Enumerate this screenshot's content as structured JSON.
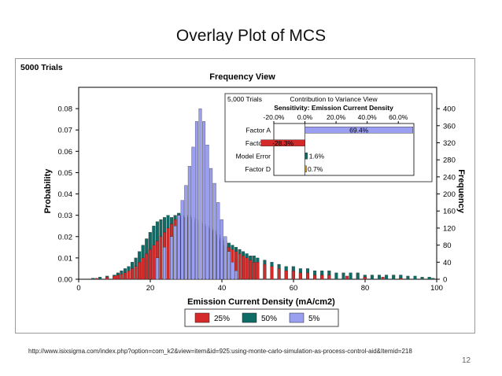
{
  "slide": {
    "title": "Overlay Plot of MCS",
    "source": "http://www.isixsigma.com/index.php?option=com_k2&view=item&id=925:using-monte-carlo-simulation-as-process-control-aid&Itemid=218",
    "page_number": "12"
  },
  "chart_data": [
    {
      "type": "bar",
      "subtype": "overlaid-histogram",
      "corner_label": "5000 Trials",
      "title": "Frequency View",
      "xlabel": "Emission Current Density (mA/cm2)",
      "ylabel": "Probability",
      "y2label": "Frequency",
      "xlim": [
        0,
        100
      ],
      "ylim": [
        0,
        0.09
      ],
      "y2lim": [
        0,
        450
      ],
      "x_ticks": [
        "0",
        "20",
        "40",
        "60",
        "80",
        "100"
      ],
      "y_ticks": [
        "0.00",
        "0.01",
        "0.02",
        "0.03",
        "0.04",
        "0.05",
        "0.06",
        "0.07",
        "0.08"
      ],
      "y2_ticks": [
        "0",
        "40",
        "80",
        "120",
        "160",
        "200",
        "240",
        "280",
        "320",
        "360",
        "400"
      ],
      "grid": false,
      "legend_position": "bottom",
      "bin_width": 0.9,
      "series": [
        {
          "name": "25%",
          "color": "#d42a2a",
          "x": [
            5,
            8,
            10,
            11,
            12,
            13,
            14,
            15,
            16,
            17,
            18,
            19,
            20,
            21,
            22,
            23,
            24,
            25,
            26,
            27,
            28,
            29,
            30,
            31,
            32,
            33,
            34,
            35,
            36,
            37,
            38,
            39,
            40,
            41,
            42,
            43,
            44,
            45,
            46,
            47,
            48,
            49,
            50,
            52,
            54,
            56,
            58,
            60,
            62,
            64,
            66,
            68,
            70,
            75,
            80,
            85,
            90
          ],
          "y": [
            0.0005,
            0.001,
            0.0015,
            0.002,
            0.0025,
            0.003,
            0.004,
            0.005,
            0.006,
            0.008,
            0.01,
            0.012,
            0.014,
            0.016,
            0.018,
            0.02,
            0.022,
            0.024,
            0.026,
            0.028,
            0.029,
            0.03,
            0.029,
            0.03,
            0.028,
            0.027,
            0.026,
            0.025,
            0.024,
            0.023,
            0.022,
            0.02,
            0.018,
            0.016,
            0.015,
            0.014,
            0.013,
            0.012,
            0.011,
            0.01,
            0.009,
            0.008,
            0.008,
            0.007,
            0.006,
            0.005,
            0.004,
            0.004,
            0.003,
            0.003,
            0.002,
            0.002,
            0.002,
            0.0015,
            0.001,
            0.001,
            0.0005
          ]
        },
        {
          "name": "50%",
          "color": "#0e6b66",
          "x": [
            4,
            6,
            8,
            10,
            11,
            12,
            13,
            14,
            15,
            16,
            17,
            18,
            19,
            20,
            21,
            22,
            23,
            24,
            25,
            26,
            27,
            28,
            29,
            30,
            31,
            32,
            33,
            34,
            35,
            36,
            37,
            38,
            39,
            40,
            41,
            42,
            43,
            44,
            45,
            46,
            47,
            48,
            49,
            50,
            52,
            54,
            56,
            58,
            60,
            62,
            64,
            66,
            68,
            70,
            72,
            74,
            76,
            78,
            80,
            82,
            84,
            86,
            88,
            90,
            92,
            94,
            96,
            98,
            99
          ],
          "y": [
            0.0005,
            0.001,
            0.0015,
            0.002,
            0.003,
            0.004,
            0.005,
            0.006,
            0.008,
            0.01,
            0.013,
            0.016,
            0.019,
            0.022,
            0.025,
            0.027,
            0.028,
            0.029,
            0.03,
            0.029,
            0.03,
            0.031,
            0.03,
            0.029,
            0.03,
            0.029,
            0.028,
            0.027,
            0.026,
            0.025,
            0.024,
            0.023,
            0.021,
            0.019,
            0.018,
            0.017,
            0.016,
            0.015,
            0.014,
            0.013,
            0.012,
            0.011,
            0.011,
            0.01,
            0.009,
            0.008,
            0.007,
            0.006,
            0.006,
            0.005,
            0.005,
            0.004,
            0.004,
            0.004,
            0.003,
            0.003,
            0.003,
            0.003,
            0.002,
            0.002,
            0.002,
            0.002,
            0.002,
            0.002,
            0.0015,
            0.0015,
            0.001,
            0.001,
            0.0005
          ]
        },
        {
          "name": "5%",
          "color": "#9b9ff1",
          "x": [
            22,
            24,
            26,
            27,
            28,
            29,
            30,
            31,
            32,
            33,
            34,
            35,
            36,
            37,
            38,
            39,
            40,
            41,
            42,
            43,
            44
          ],
          "y": [
            0.01,
            0.015,
            0.02,
            0.025,
            0.03,
            0.037,
            0.044,
            0.053,
            0.062,
            0.074,
            0.08,
            0.074,
            0.063,
            0.052,
            0.045,
            0.036,
            0.028,
            0.02,
            0.013,
            0.008,
            0.004
          ]
        }
      ]
    },
    {
      "type": "bar",
      "subtype": "horizontal-tornado",
      "corner_label": "5,000 Trials",
      "title": "Contribution to Variance View",
      "subtitle": "Sensitivity: Emission Current Density",
      "xlim": [
        -0.2,
        0.7
      ],
      "x_ticks": [
        "-20.0%",
        "0.0%",
        "20.0%",
        "40.0%",
        "60.0%"
      ],
      "categories": [
        "Factor A",
        "Factor B",
        "Model Error",
        "Factor D"
      ],
      "values": [
        0.694,
        -0.283,
        0.016,
        0.007
      ],
      "value_labels": [
        "69.4%",
        "-28.3%",
        "1.6%",
        "0.7%"
      ],
      "colors": [
        "#9b9ff1",
        "#d42a2a",
        "#0e6b66",
        "#c79a3a"
      ]
    }
  ]
}
